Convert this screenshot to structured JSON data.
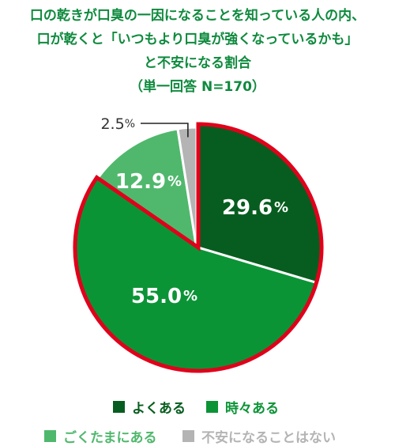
{
  "title_lines": [
    "口の乾きが口臭の一因になることを知っている人の内、",
    "口が乾くと「いつもより口臭が強くなっているかも」",
    "と不安になる割合",
    "（単一回答 N=170）"
  ],
  "colors": {
    "title": "#0f8a3e",
    "border": "#e0001b",
    "yoku": "#075d1f",
    "tokidoki": "#0b9436",
    "gokutama": "#50b86d",
    "nai": "#b4b4b4"
  },
  "chart_data": {
    "type": "pie",
    "title": "口の乾きが口臭の一因になることを知っている人の内、口が乾くと「いつもより口臭が強くなっているかも」と不安になる割合（単一回答 N=170）",
    "unit": "%",
    "slices": [
      {
        "label": "よくある",
        "value": 29.6,
        "value_text": "29.6",
        "color": "#075d1f",
        "exploded": true
      },
      {
        "label": "時々ある",
        "value": 55.0,
        "value_text": "55.0",
        "color": "#0b9436",
        "exploded": true
      },
      {
        "label": "ごくたまにある",
        "value": 12.9,
        "value_text": "12.9",
        "color": "#50b86d",
        "exploded": false
      },
      {
        "label": "不安になることはない",
        "value": 2.5,
        "value_text": "2.5",
        "color": "#b4b4b4",
        "exploded": false
      }
    ],
    "start_angle": "12 o'clock",
    "direction": "clockwise",
    "legend_position": "bottom"
  },
  "legend": [
    {
      "label": "よくある",
      "color": "#075d1f"
    },
    {
      "label": "時々ある",
      "color": "#0b9436"
    },
    {
      "label": "ごくたまにある",
      "color": "#50b86d"
    },
    {
      "label": "不安になることはない",
      "color": "#b4b4b4"
    }
  ]
}
